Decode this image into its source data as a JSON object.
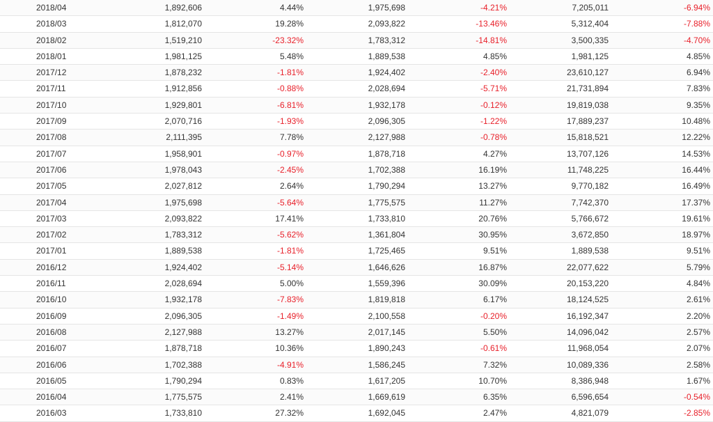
{
  "colors": {
    "negative": "#e8202a",
    "text": "#333333",
    "row_border": "#e5e5e5"
  },
  "rows": [
    {
      "month": "2018/04",
      "v1": "1,892,606",
      "p1": "4.44%",
      "v2": "1,975,698",
      "p2": "-4.21%",
      "v3": "7,205,011",
      "p3": "-6.94%"
    },
    {
      "month": "2018/03",
      "v1": "1,812,070",
      "p1": "19.28%",
      "v2": "2,093,822",
      "p2": "-13.46%",
      "v3": "5,312,404",
      "p3": "-7.88%"
    },
    {
      "month": "2018/02",
      "v1": "1,519,210",
      "p1": "-23.32%",
      "v2": "1,783,312",
      "p2": "-14.81%",
      "v3": "3,500,335",
      "p3": "-4.70%"
    },
    {
      "month": "2018/01",
      "v1": "1,981,125",
      "p1": "5.48%",
      "v2": "1,889,538",
      "p2": "4.85%",
      "v3": "1,981,125",
      "p3": "4.85%"
    },
    {
      "month": "2017/12",
      "v1": "1,878,232",
      "p1": "-1.81%",
      "v2": "1,924,402",
      "p2": "-2.40%",
      "v3": "23,610,127",
      "p3": "6.94%"
    },
    {
      "month": "2017/11",
      "v1": "1,912,856",
      "p1": "-0.88%",
      "v2": "2,028,694",
      "p2": "-5.71%",
      "v3": "21,731,894",
      "p3": "7.83%"
    },
    {
      "month": "2017/10",
      "v1": "1,929,801",
      "p1": "-6.81%",
      "v2": "1,932,178",
      "p2": "-0.12%",
      "v3": "19,819,038",
      "p3": "9.35%"
    },
    {
      "month": "2017/09",
      "v1": "2,070,716",
      "p1": "-1.93%",
      "v2": "2,096,305",
      "p2": "-1.22%",
      "v3": "17,889,237",
      "p3": "10.48%"
    },
    {
      "month": "2017/08",
      "v1": "2,111,395",
      "p1": "7.78%",
      "v2": "2,127,988",
      "p2": "-0.78%",
      "v3": "15,818,521",
      "p3": "12.22%"
    },
    {
      "month": "2017/07",
      "v1": "1,958,901",
      "p1": "-0.97%",
      "v2": "1,878,718",
      "p2": "4.27%",
      "v3": "13,707,126",
      "p3": "14.53%"
    },
    {
      "month": "2017/06",
      "v1": "1,978,043",
      "p1": "-2.45%",
      "v2": "1,702,388",
      "p2": "16.19%",
      "v3": "11,748,225",
      "p3": "16.44%"
    },
    {
      "month": "2017/05",
      "v1": "2,027,812",
      "p1": "2.64%",
      "v2": "1,790,294",
      "p2": "13.27%",
      "v3": "9,770,182",
      "p3": "16.49%"
    },
    {
      "month": "2017/04",
      "v1": "1,975,698",
      "p1": "-5.64%",
      "v2": "1,775,575",
      "p2": "11.27%",
      "v3": "7,742,370",
      "p3": "17.37%"
    },
    {
      "month": "2017/03",
      "v1": "2,093,822",
      "p1": "17.41%",
      "v2": "1,733,810",
      "p2": "20.76%",
      "v3": "5,766,672",
      "p3": "19.61%"
    },
    {
      "month": "2017/02",
      "v1": "1,783,312",
      "p1": "-5.62%",
      "v2": "1,361,804",
      "p2": "30.95%",
      "v3": "3,672,850",
      "p3": "18.97%"
    },
    {
      "month": "2017/01",
      "v1": "1,889,538",
      "p1": "-1.81%",
      "v2": "1,725,465",
      "p2": "9.51%",
      "v3": "1,889,538",
      "p3": "9.51%"
    },
    {
      "month": "2016/12",
      "v1": "1,924,402",
      "p1": "-5.14%",
      "v2": "1,646,626",
      "p2": "16.87%",
      "v3": "22,077,622",
      "p3": "5.79%"
    },
    {
      "month": "2016/11",
      "v1": "2,028,694",
      "p1": "5.00%",
      "v2": "1,559,396",
      "p2": "30.09%",
      "v3": "20,153,220",
      "p3": "4.84%"
    },
    {
      "month": "2016/10",
      "v1": "1,932,178",
      "p1": "-7.83%",
      "v2": "1,819,818",
      "p2": "6.17%",
      "v3": "18,124,525",
      "p3": "2.61%"
    },
    {
      "month": "2016/09",
      "v1": "2,096,305",
      "p1": "-1.49%",
      "v2": "2,100,558",
      "p2": "-0.20%",
      "v3": "16,192,347",
      "p3": "2.20%"
    },
    {
      "month": "2016/08",
      "v1": "2,127,988",
      "p1": "13.27%",
      "v2": "2,017,145",
      "p2": "5.50%",
      "v3": "14,096,042",
      "p3": "2.57%"
    },
    {
      "month": "2016/07",
      "v1": "1,878,718",
      "p1": "10.36%",
      "v2": "1,890,243",
      "p2": "-0.61%",
      "v3": "11,968,054",
      "p3": "2.07%"
    },
    {
      "month": "2016/06",
      "v1": "1,702,388",
      "p1": "-4.91%",
      "v2": "1,586,245",
      "p2": "7.32%",
      "v3": "10,089,336",
      "p3": "2.58%"
    },
    {
      "month": "2016/05",
      "v1": "1,790,294",
      "p1": "0.83%",
      "v2": "1,617,205",
      "p2": "10.70%",
      "v3": "8,386,948",
      "p3": "1.67%"
    },
    {
      "month": "2016/04",
      "v1": "1,775,575",
      "p1": "2.41%",
      "v2": "1,669,619",
      "p2": "6.35%",
      "v3": "6,596,654",
      "p3": "-0.54%"
    },
    {
      "month": "2016/03",
      "v1": "1,733,810",
      "p1": "27.32%",
      "v2": "1,692,045",
      "p2": "2.47%",
      "v3": "4,821,079",
      "p3": "-2.85%"
    }
  ]
}
